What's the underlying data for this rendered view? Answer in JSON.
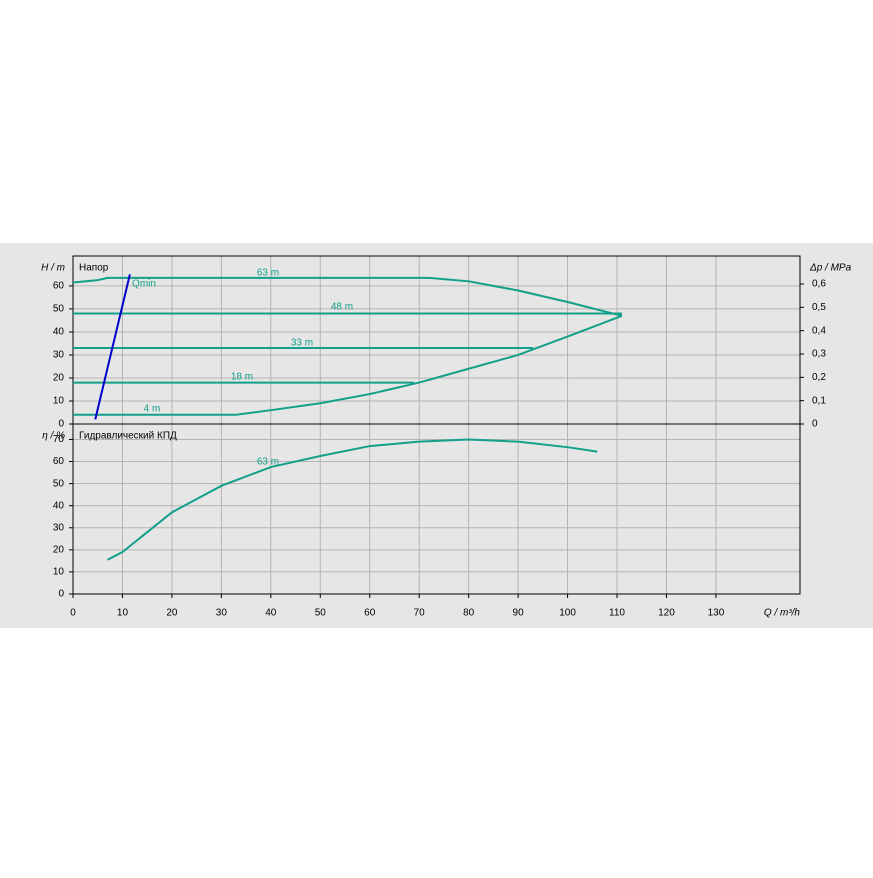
{
  "chart_data": [
    {
      "type": "line",
      "title": "Напор",
      "ylabel": "H / m",
      "y2label": "Δp / MPa",
      "ylim": [
        0,
        73
      ],
      "yticks": [
        0,
        10,
        20,
        30,
        40,
        50,
        60
      ],
      "y2lim": [
        0,
        0.72
      ],
      "y2ticks": [
        0,
        {
          "value": 0.1,
          "label": "0,1"
        },
        {
          "value": 0.2,
          "label": "0,2"
        },
        {
          "value": 0.3,
          "label": "0,3"
        },
        {
          "value": 0.4,
          "label": "0,4"
        },
        {
          "value": 0.5,
          "label": "0,5"
        },
        {
          "value": 0.6,
          "label": "0,6"
        }
      ],
      "grid": true,
      "series": [
        {
          "name": "63 m",
          "color": "#12a08a",
          "x": [
            0,
            5,
            7,
            72,
            80,
            90,
            100,
            111
          ],
          "values": [
            61.5,
            62.5,
            63.5,
            63.5,
            62,
            58,
            53,
            47
          ]
        },
        {
          "name": "48 m",
          "color": "#12a08a",
          "x": [
            0,
            111
          ],
          "values": [
            48,
            48
          ]
        },
        {
          "name": "33 m",
          "color": "#12a08a",
          "x": [
            0,
            93
          ],
          "values": [
            33,
            33
          ]
        },
        {
          "name": "18 m",
          "color": "#12a08a",
          "x": [
            0,
            69
          ],
          "values": [
            18,
            18
          ]
        },
        {
          "name": "4 m",
          "color": "#12a08a",
          "x": [
            0,
            33,
            40,
            50,
            60,
            70,
            80,
            90,
            100,
            111
          ],
          "values": [
            4,
            4,
            6,
            9,
            13,
            18,
            24,
            30,
            38,
            47
          ]
        },
        {
          "name": "Qmin",
          "color": "#0000cc",
          "x": [
            4.5,
            11.5
          ],
          "values": [
            2,
            65
          ]
        }
      ]
    },
    {
      "type": "line",
      "title": "Гидравлический КПД",
      "ylabel": "η / %",
      "xlabel": "Q / m³/h",
      "xlim": [
        0,
        147
      ],
      "xticks": [
        0,
        10,
        20,
        30,
        40,
        50,
        60,
        70,
        80,
        90,
        100,
        110,
        120,
        130
      ],
      "ylim": [
        0,
        77
      ],
      "yticks": [
        0,
        10,
        20,
        30,
        40,
        50,
        60,
        70
      ],
      "grid": true,
      "series": [
        {
          "name": "63 m",
          "color": "#12a08a",
          "x": [
            7,
            10,
            15,
            20,
            30,
            40,
            50,
            60,
            70,
            80,
            90,
            100,
            106
          ],
          "values": [
            15.5,
            19,
            28,
            37,
            49,
            57.5,
            62.5,
            67,
            69,
            70,
            69,
            66.5,
            64.5
          ]
        }
      ]
    }
  ]
}
